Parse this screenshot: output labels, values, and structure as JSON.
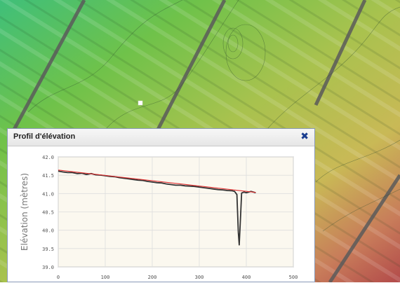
{
  "map": {
    "marker_color": "#ffffff",
    "colors": {
      "green": "#7cc04a",
      "yellow": "#c9c455",
      "red": "#c05a4a",
      "road": "#5b5b5b"
    }
  },
  "panel": {
    "title": "Profil d'élévation",
    "close_icon": "close-icon",
    "close_glyph": "✖"
  },
  "chart_data": {
    "type": "line",
    "title": "",
    "xlabel": "",
    "ylabel": "Elévation (mètres)",
    "xlim": [
      0,
      500
    ],
    "ylim": [
      38.5,
      42.0
    ],
    "x_ticks": [
      "0",
      "100",
      "200",
      "300",
      "400",
      "500"
    ],
    "y_ticks": [
      "42.0",
      "41.5",
      "41.0",
      "40.5",
      "40.0",
      "39.5",
      "39.0"
    ],
    "grid": true,
    "series": [
      {
        "color": "#333333",
        "x": [
          0,
          10,
          20,
          30,
          40,
          50,
          60,
          70,
          80,
          90,
          100,
          110,
          120,
          130,
          140,
          150,
          160,
          170,
          180,
          190,
          200,
          210,
          220,
          230,
          240,
          250,
          260,
          270,
          280,
          290,
          300,
          310,
          320,
          330,
          340,
          350,
          360,
          370,
          375,
          380,
          383,
          385,
          388,
          390,
          395,
          400,
          410,
          420
        ],
        "y": [
          41.55,
          41.52,
          41.5,
          41.5,
          41.47,
          41.48,
          41.44,
          41.47,
          41.43,
          41.42,
          41.4,
          41.38,
          41.37,
          41.34,
          41.32,
          41.3,
          41.28,
          41.26,
          41.25,
          41.22,
          41.2,
          41.18,
          41.17,
          41.14,
          41.12,
          41.1,
          41.1,
          41.08,
          41.07,
          41.06,
          41.04,
          41.02,
          41.0,
          40.98,
          40.96,
          40.95,
          40.93,
          40.92,
          40.9,
          40.8,
          39.6,
          39.2,
          40.2,
          40.85,
          40.88,
          40.86,
          40.9,
          40.86
        ]
      },
      {
        "color": "#e03030",
        "x": [
          0,
          420
        ],
        "y": [
          41.58,
          40.87
        ]
      }
    ]
  }
}
